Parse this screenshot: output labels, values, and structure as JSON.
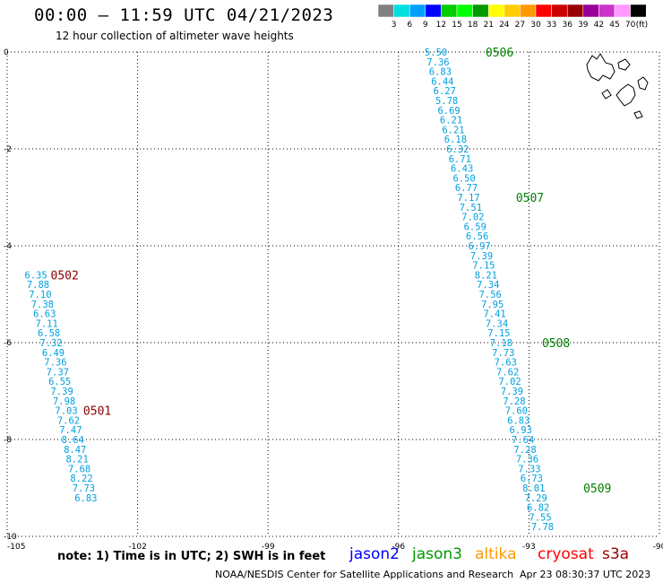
{
  "header": {
    "title": "00:00 – 11:59 UTC 04/21/2023",
    "subtitle": "12 hour collection of altimeter wave heights"
  },
  "legend": {
    "unit": "(ft)",
    "bins": [
      {
        "label": "3",
        "color": "#808080"
      },
      {
        "label": "6",
        "color": "#00e0e0"
      },
      {
        "label": "9",
        "color": "#00a0ff"
      },
      {
        "label": "12",
        "color": "#0000ff"
      },
      {
        "label": "15",
        "color": "#00cc00"
      },
      {
        "label": "18",
        "color": "#00ff00"
      },
      {
        "label": "21",
        "color": "#009900"
      },
      {
        "label": "24",
        "color": "#ffff00"
      },
      {
        "label": "27",
        "color": "#ffcc00"
      },
      {
        "label": "30",
        "color": "#ff9900"
      },
      {
        "label": "33",
        "color": "#ff0000"
      },
      {
        "label": "36",
        "color": "#cc0000"
      },
      {
        "label": "39",
        "color": "#990000"
      },
      {
        "label": "42",
        "color": "#990099"
      },
      {
        "label": "45",
        "color": "#cc33cc"
      },
      {
        "label": "70",
        "color": "#ff99ff"
      },
      {
        "label": "",
        "color": "#000000"
      }
    ]
  },
  "chart_data": {
    "type": "scatter",
    "xlim": [
      -105,
      -90
    ],
    "ylim": [
      -10,
      0
    ],
    "x_ticks": [
      "-105",
      "-102",
      "-99",
      "-96",
      "-93",
      "-90"
    ],
    "x_tick_values": [
      -105,
      -102,
      -99,
      -96,
      -93,
      -90
    ],
    "y_ticks": [
      "0",
      "-2",
      "-4",
      "-6",
      "-8",
      "-10"
    ],
    "y_tick_values": [
      0,
      -2,
      -4,
      -6,
      -8,
      -10
    ],
    "grid": true,
    "series": [
      {
        "color": "#00a0e0",
        "points": [
          {
            "x": -95.4,
            "y": 0.0,
            "v": "5.50"
          },
          {
            "x": -95.35,
            "y": -0.2,
            "v": "7.36"
          },
          {
            "x": -95.3,
            "y": -0.4,
            "v": "6.83"
          },
          {
            "x": -95.25,
            "y": -0.6,
            "v": "6.44"
          },
          {
            "x": -95.2,
            "y": -0.8,
            "v": "6.27"
          },
          {
            "x": -95.15,
            "y": -1.0,
            "v": "5.78"
          },
          {
            "x": -95.1,
            "y": -1.2,
            "v": "6.69"
          },
          {
            "x": -95.05,
            "y": -1.4,
            "v": "6.21"
          },
          {
            "x": -95.0,
            "y": -1.6,
            "v": "6.21"
          },
          {
            "x": -94.95,
            "y": -1.8,
            "v": "6.18"
          },
          {
            "x": -94.9,
            "y": -2.0,
            "v": "6.32"
          },
          {
            "x": -94.85,
            "y": -2.2,
            "v": "6.71"
          },
          {
            "x": -94.8,
            "y": -2.4,
            "v": "6.43"
          },
          {
            "x": -94.75,
            "y": -2.6,
            "v": "6.50"
          },
          {
            "x": -94.7,
            "y": -2.8,
            "v": "6.77"
          },
          {
            "x": -94.65,
            "y": -3.0,
            "v": "7.17"
          },
          {
            "x": -94.6,
            "y": -3.2,
            "v": "7.51"
          },
          {
            "x": -94.55,
            "y": -3.4,
            "v": "7.02"
          },
          {
            "x": -94.5,
            "y": -3.6,
            "v": "6.59"
          },
          {
            "x": -94.45,
            "y": -3.8,
            "v": "6.56"
          },
          {
            "x": -94.4,
            "y": -4.0,
            "v": "6.97"
          },
          {
            "x": -94.35,
            "y": -4.2,
            "v": "7.39"
          },
          {
            "x": -94.3,
            "y": -4.4,
            "v": "7.15"
          },
          {
            "x": -94.25,
            "y": -4.6,
            "v": "8.21"
          },
          {
            "x": -94.2,
            "y": -4.8,
            "v": "7.34"
          },
          {
            "x": -94.15,
            "y": -5.0,
            "v": "7.56"
          },
          {
            "x": -94.1,
            "y": -5.2,
            "v": "7.95"
          },
          {
            "x": -94.05,
            "y": -5.4,
            "v": "7.41"
          },
          {
            "x": -94.0,
            "y": -5.6,
            "v": "7.34"
          },
          {
            "x": -93.95,
            "y": -5.8,
            "v": "7.15"
          },
          {
            "x": -93.9,
            "y": -6.0,
            "v": "7.18"
          },
          {
            "x": -93.85,
            "y": -6.2,
            "v": "7.73"
          },
          {
            "x": -93.8,
            "y": -6.4,
            "v": "7.63"
          },
          {
            "x": -93.75,
            "y": -6.6,
            "v": "7.62"
          },
          {
            "x": -93.7,
            "y": -6.8,
            "v": "7.02"
          },
          {
            "x": -93.65,
            "y": -7.0,
            "v": "7.39"
          },
          {
            "x": -93.6,
            "y": -7.2,
            "v": "7.28"
          },
          {
            "x": -93.55,
            "y": -7.4,
            "v": "7.60"
          },
          {
            "x": -93.5,
            "y": -7.6,
            "v": "6.83"
          },
          {
            "x": -93.45,
            "y": -7.8,
            "v": "6.93"
          },
          {
            "x": -93.4,
            "y": -8.0,
            "v": "7.64"
          },
          {
            "x": -93.35,
            "y": -8.2,
            "v": "7.28"
          },
          {
            "x": -93.3,
            "y": -8.4,
            "v": "7.36"
          },
          {
            "x": -93.25,
            "y": -8.6,
            "v": "7.33"
          },
          {
            "x": -93.2,
            "y": -8.8,
            "v": "6.73"
          },
          {
            "x": -93.15,
            "y": -9.0,
            "v": "8.01"
          },
          {
            "x": -93.1,
            "y": -9.2,
            "v": "7.29"
          },
          {
            "x": -93.05,
            "y": -9.4,
            "v": "6.82"
          },
          {
            "x": -93.0,
            "y": -9.6,
            "v": "7.55"
          },
          {
            "x": -92.95,
            "y": -9.8,
            "v": "7.78"
          }
        ]
      },
      {
        "color": "#00a0e0",
        "points": [
          {
            "x": -104.6,
            "y": -4.6,
            "v": "6.35"
          },
          {
            "x": -104.55,
            "y": -4.8,
            "v": "7.88"
          },
          {
            "x": -104.5,
            "y": -5.0,
            "v": "7.10"
          },
          {
            "x": -104.45,
            "y": -5.2,
            "v": "7.38"
          },
          {
            "x": -104.4,
            "y": -5.4,
            "v": "6.63"
          },
          {
            "x": -104.35,
            "y": -5.6,
            "v": "7.11"
          },
          {
            "x": -104.3,
            "y": -5.8,
            "v": "6.58"
          },
          {
            "x": -104.25,
            "y": -6.0,
            "v": "7.32"
          },
          {
            "x": -104.2,
            "y": -6.2,
            "v": "6.49"
          },
          {
            "x": -104.15,
            "y": -6.4,
            "v": "7.36"
          },
          {
            "x": -104.1,
            "y": -6.6,
            "v": "7.37"
          },
          {
            "x": -104.05,
            "y": -6.8,
            "v": "6.55"
          },
          {
            "x": -104.0,
            "y": -7.0,
            "v": "7.39"
          },
          {
            "x": -103.95,
            "y": -7.2,
            "v": "7.98"
          },
          {
            "x": -103.9,
            "y": -7.4,
            "v": "7.03"
          },
          {
            "x": -103.85,
            "y": -7.6,
            "v": "7.62"
          },
          {
            "x": -103.8,
            "y": -7.8,
            "v": "7.47"
          },
          {
            "x": -103.75,
            "y": -8.0,
            "v": "8.64"
          },
          {
            "x": -103.7,
            "y": -8.2,
            "v": "8.47"
          },
          {
            "x": -103.65,
            "y": -8.4,
            "v": "8.21"
          },
          {
            "x": -103.6,
            "y": -8.6,
            "v": "7.68"
          },
          {
            "x": -103.55,
            "y": -8.8,
            "v": "8.22"
          },
          {
            "x": -103.5,
            "y": -9.0,
            "v": "7.73"
          },
          {
            "x": -103.45,
            "y": -9.2,
            "v": "6.83"
          }
        ]
      }
    ],
    "annotations": [
      {
        "text": "0506",
        "x": -94.0,
        "y": 0.0,
        "color": "#008000"
      },
      {
        "text": "0507",
        "x": -93.3,
        "y": -3.0,
        "color": "#008000"
      },
      {
        "text": "0508",
        "x": -92.7,
        "y": -6.0,
        "color": "#008000"
      },
      {
        "text": "0509",
        "x": -91.75,
        "y": -9.0,
        "color": "#008000"
      },
      {
        "text": "0502",
        "x": -104.0,
        "y": -4.6,
        "color": "#8b0000"
      },
      {
        "text": "0501",
        "x": -103.25,
        "y": -7.4,
        "color": "#8b0000"
      }
    ]
  },
  "note": "note: 1) Time is in UTC; 2) SWH is in feet",
  "satellites": [
    {
      "name": "jason2",
      "color": "#0000ff"
    },
    {
      "name": "jason3",
      "color": "#009900"
    },
    {
      "name": "altika",
      "color": "#ff9900"
    },
    {
      "name": "cryosat",
      "color": "#ff0000"
    },
    {
      "name": "s3a",
      "color": "#990000"
    }
  ],
  "footer": {
    "credit": "NOAA/NESDIS Center for Satellite Applications and Research",
    "timestamp": "Apr 23 08:30:37 UTC 2023"
  }
}
